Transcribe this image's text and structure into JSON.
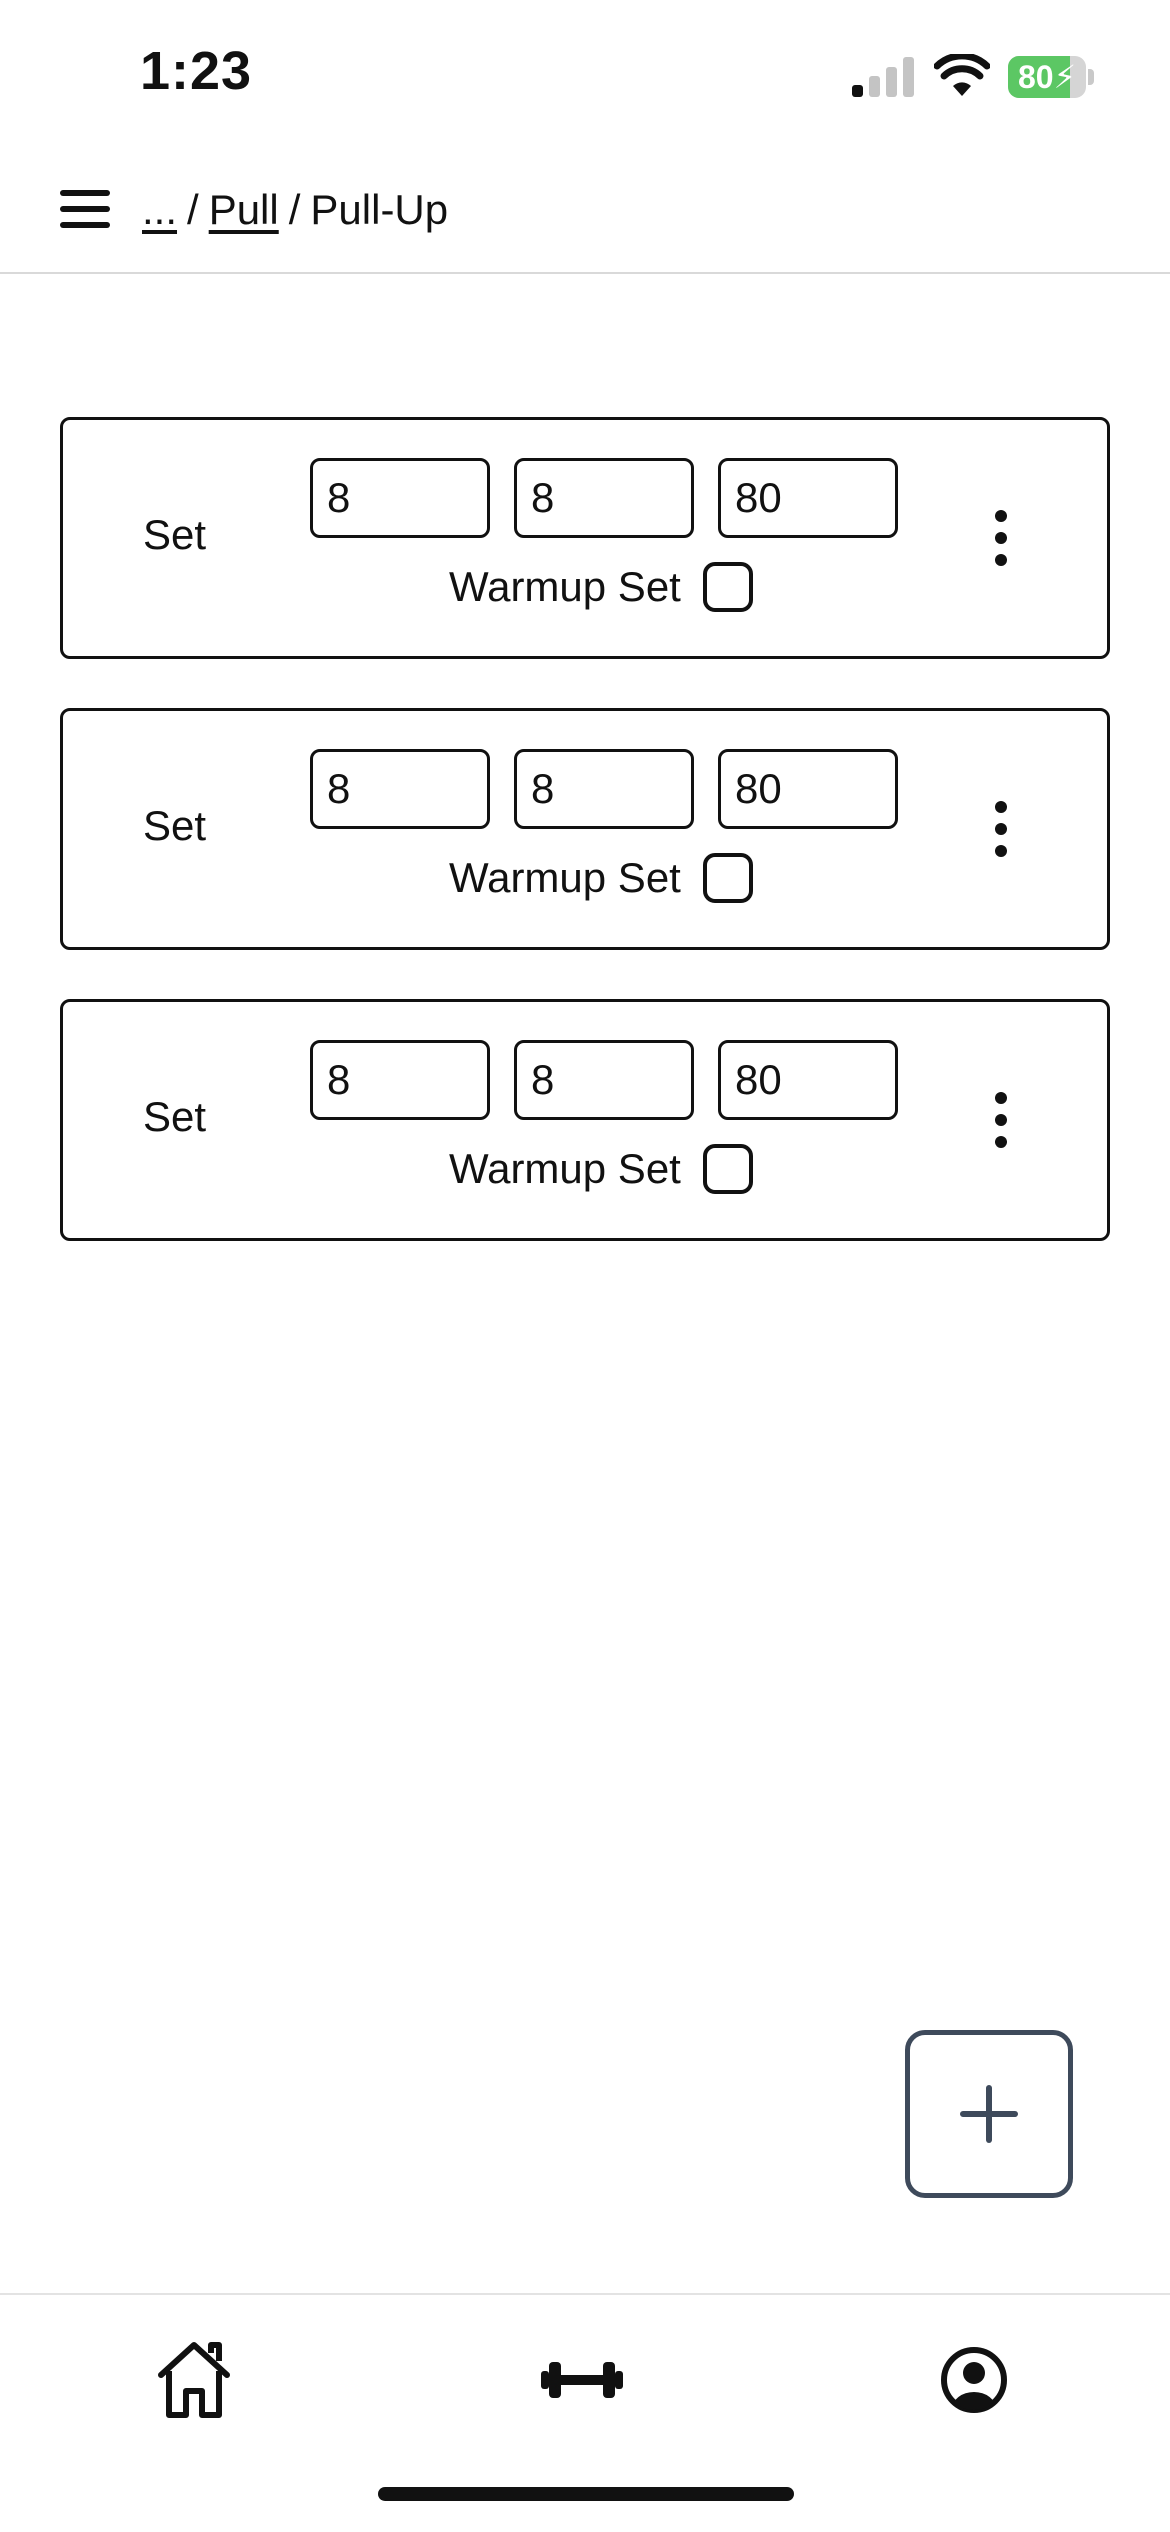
{
  "status_bar": {
    "time": "1:23",
    "battery_percent": 80,
    "battery_label": "80",
    "signal_icon": "cellular-signal-icon",
    "wifi_icon": "wifi-icon"
  },
  "header": {
    "menu_icon": "hamburger-menu-icon",
    "breadcrumb": {
      "ellipsis": "...",
      "separator": "/",
      "parent": "Pull",
      "current": "Pull-Up"
    }
  },
  "sets": [
    {
      "label": "Set",
      "values": [
        "8",
        "8",
        "80"
      ],
      "warmup_label": "Warmup Set",
      "warmup_checked": false
    },
    {
      "label": "Set",
      "values": [
        "8",
        "8",
        "80"
      ],
      "warmup_label": "Warmup Set",
      "warmup_checked": false
    },
    {
      "label": "Set",
      "values": [
        "8",
        "8",
        "80"
      ],
      "warmup_label": "Warmup Set",
      "warmup_checked": false
    }
  ],
  "fab": {
    "icon": "plus-icon"
  },
  "bottom_nav": {
    "items": [
      {
        "name": "home",
        "icon": "home-icon"
      },
      {
        "name": "workout",
        "icon": "dumbbell-icon"
      },
      {
        "name": "profile",
        "icon": "user-circle-icon"
      }
    ]
  },
  "colors": {
    "battery_fill": "#5cc764",
    "fab_border": "#3e4a5b",
    "divider": "#d9d9d9"
  }
}
